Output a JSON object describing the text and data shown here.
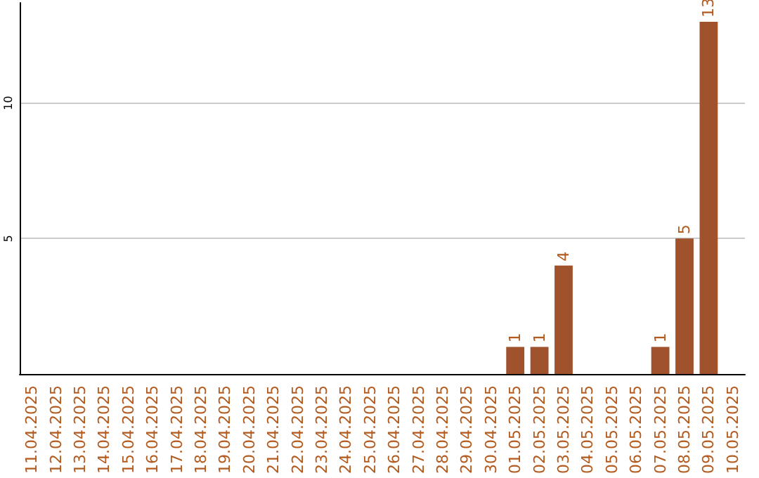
{
  "chart_data": {
    "type": "bar",
    "categories": [
      "11.04.2025",
      "12.04.2025",
      "13.04.2025",
      "14.04.2025",
      "15.04.2025",
      "16.04.2025",
      "17.04.2025",
      "18.04.2025",
      "19.04.2025",
      "20.04.2025",
      "21.04.2025",
      "22.04.2025",
      "23.04.2025",
      "24.04.2025",
      "25.04.2025",
      "26.04.2025",
      "27.04.2025",
      "28.04.2025",
      "29.04.2025",
      "30.04.2025",
      "01.05.2025",
      "02.05.2025",
      "03.05.2025",
      "04.05.2025",
      "05.05.2025",
      "06.05.2025",
      "07.05.2025",
      "08.05.2025",
      "09.05.2025",
      "10.05.2025"
    ],
    "values": [
      null,
      null,
      null,
      null,
      null,
      null,
      null,
      null,
      null,
      null,
      null,
      null,
      null,
      null,
      null,
      null,
      null,
      null,
      null,
      null,
      1,
      1,
      4,
      null,
      null,
      null,
      1,
      5,
      13,
      null
    ],
    "color": "#a0522d",
    "ylim": [
      0,
      13.7
    ],
    "yticks": [
      5,
      10
    ],
    "grid": "y",
    "data_labels": true
  }
}
